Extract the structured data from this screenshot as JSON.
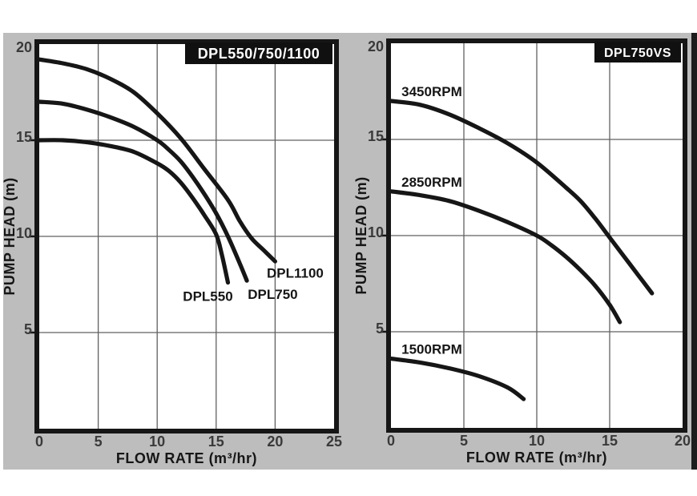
{
  "page": {
    "background": "#ffffff",
    "panel_color": "#bdbdbd",
    "edge_strip_color": "#1d1d1d",
    "ink_color": "#161616",
    "plot_bg": "#ffffff",
    "grid_color": "#606060",
    "tick_color": "#3a3a3a",
    "title_box_color": "#101010",
    "title_text_color": "#ffffff"
  },
  "chart_data": [
    {
      "type": "line",
      "title": "DPL550/750/1100",
      "xlabel": "FLOW RATE (m³/hr)",
      "ylabel": "PUMP HEAD  (m)",
      "xlim": [
        0,
        25
      ],
      "ylim": [
        0,
        20
      ],
      "xticks": [
        0,
        5,
        10,
        15,
        20,
        25
      ],
      "yticks": [
        5,
        10,
        15,
        20
      ],
      "xtick_labels": [
        "0",
        "5",
        "10",
        "15",
        "20",
        "25"
      ],
      "ytick_labels": [
        "5",
        "10",
        "15",
        "20"
      ],
      "grid": true,
      "legend_position": "inline-labels",
      "series": [
        {
          "name": "DPL550",
          "label_at": [
            14.3,
            6.9
          ],
          "points": [
            [
              0,
              15
            ],
            [
              2,
              15
            ],
            [
              4,
              14.9
            ],
            [
              6,
              14.7
            ],
            [
              8,
              14.4
            ],
            [
              10,
              13.8
            ],
            [
              11,
              13.4
            ],
            [
              12,
              12.8
            ],
            [
              13,
              12
            ],
            [
              14,
              11.1
            ],
            [
              15,
              10.1
            ],
            [
              15.5,
              9
            ],
            [
              16,
              7.6
            ]
          ]
        },
        {
          "name": "DPL750",
          "label_at": [
            19.8,
            7.0
          ],
          "points": [
            [
              0,
              17
            ],
            [
              2,
              16.9
            ],
            [
              4,
              16.6
            ],
            [
              6,
              16.2
            ],
            [
              8,
              15.7
            ],
            [
              10,
              15
            ],
            [
              11,
              14.5
            ],
            [
              12,
              13.9
            ],
            [
              13,
              13.1
            ],
            [
              14,
              12.2
            ],
            [
              15,
              11.2
            ],
            [
              16,
              10
            ],
            [
              17,
              8.6
            ],
            [
              17.6,
              7.7
            ]
          ]
        },
        {
          "name": "DPL1100",
          "label_at": [
            21.7,
            8.1
          ],
          "points": [
            [
              0,
              19.2
            ],
            [
              2,
              19
            ],
            [
              4,
              18.7
            ],
            [
              6,
              18.2
            ],
            [
              8,
              17.5
            ],
            [
              10,
              16.4
            ],
            [
              12,
              15.1
            ],
            [
              14,
              13.5
            ],
            [
              16,
              11.9
            ],
            [
              17,
              10.8
            ],
            [
              18,
              9.9
            ],
            [
              19,
              9.3
            ],
            [
              20,
              8.7
            ]
          ]
        }
      ]
    },
    {
      "type": "line",
      "title": "DPL750VS",
      "xlabel": "FLOW RATE (m³/hr)",
      "ylabel": "PUMP HEAD  (m)",
      "xlim": [
        0,
        20
      ],
      "ylim": [
        0,
        20
      ],
      "xticks": [
        0,
        5,
        10,
        15,
        20
      ],
      "yticks": [
        5,
        10,
        15,
        20
      ],
      "xtick_labels": [
        "0",
        "5",
        "10",
        "15",
        "20"
      ],
      "ytick_labels": [
        "5",
        "10",
        "15",
        "20"
      ],
      "grid": true,
      "legend_position": "inline-labels",
      "series": [
        {
          "name": "3450RPM",
          "label_at": [
            2.8,
            17.5
          ],
          "points": [
            [
              0,
              17
            ],
            [
              2,
              16.8
            ],
            [
              4,
              16.3
            ],
            [
              6,
              15.6
            ],
            [
              8,
              14.8
            ],
            [
              10,
              13.8
            ],
            [
              12,
              12.5
            ],
            [
              13,
              11.8
            ],
            [
              14,
              10.9
            ],
            [
              15,
              9.9
            ],
            [
              16,
              8.9
            ],
            [
              17,
              7.9
            ],
            [
              17.9,
              7
            ]
          ]
        },
        {
          "name": "2850RPM",
          "label_at": [
            2.8,
            12.8
          ],
          "points": [
            [
              0,
              12.3
            ],
            [
              2,
              12.1
            ],
            [
              4,
              11.8
            ],
            [
              6,
              11.3
            ],
            [
              8,
              10.7
            ],
            [
              10,
              10
            ],
            [
              11,
              9.5
            ],
            [
              12,
              8.9
            ],
            [
              13,
              8.2
            ],
            [
              14,
              7.4
            ],
            [
              15,
              6.4
            ],
            [
              15.7,
              5.5
            ]
          ]
        },
        {
          "name": "1500RPM",
          "label_at": [
            2.8,
            4.1
          ],
          "points": [
            [
              0,
              3.6
            ],
            [
              2,
              3.4
            ],
            [
              4,
              3.1
            ],
            [
              6,
              2.7
            ],
            [
              8,
              2.1
            ],
            [
              9.1,
              1.5
            ]
          ]
        }
      ]
    }
  ]
}
